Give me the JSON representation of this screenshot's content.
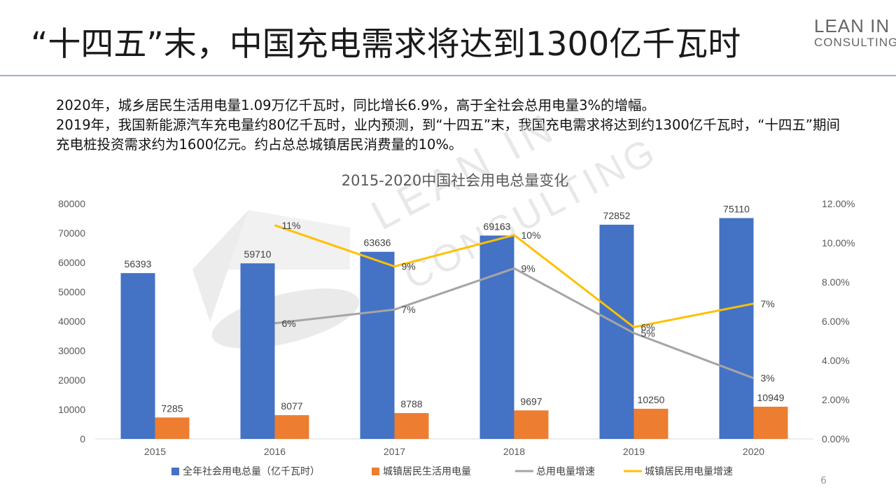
{
  "slide": {
    "title": "“十四五”末，中国充电需求将达到1300亿千瓦时",
    "logo_line1": "LEAN IN",
    "logo_line2": "CONSULTING",
    "watermark_line1": "LEAN IN",
    "watermark_line2": "CONSULTING",
    "summary": [
      "2020年，城乡居民生活用电量1.09万亿千瓦时，同比增长6.9%，高于全社会总用电量3%的增幅。",
      "2019年，我国新能源汽车充电量约80亿千瓦时，业内预测，到“十四五”末，我国充电需求将达到约1300亿千瓦时，“十四五”期间充电桩投资需求约为1600亿元。约占总总城镇居民消费量的10%。"
    ],
    "page_number": "6"
  },
  "chart_data": {
    "type": "bar",
    "title": "2015-2020中国社会用电总量变化",
    "categories": [
      "2015",
      "2016",
      "2017",
      "2018",
      "2019",
      "2020"
    ],
    "y_left": {
      "min": 0,
      "max": 80000,
      "ticks": [
        "0",
        "10000",
        "20000",
        "30000",
        "40000",
        "50000",
        "60000",
        "70000",
        "80000"
      ]
    },
    "y_right": {
      "min": 0,
      "max": 12,
      "ticks": [
        "0.00%",
        "2.00%",
        "4.00%",
        "6.00%",
        "8.00%",
        "10.00%",
        "12.00%"
      ]
    },
    "grid": false,
    "legend_position": "bottom",
    "bar_series": [
      {
        "name": "全年社会用电总量（亿千瓦时）",
        "color": "#4472c4",
        "values": [
          56393,
          59710,
          63636,
          69163,
          72852,
          75110
        ],
        "labels": [
          "56393",
          "59710",
          "63636",
          "69163",
          "72852",
          "75110"
        ]
      },
      {
        "name": "城镇居民生活用电量",
        "color": "#ed7d31",
        "values": [
          7285,
          8077,
          8788,
          9697,
          10250,
          10949
        ],
        "labels": [
          "7285",
          "8077",
          "8788",
          "9697",
          "10250",
          "10949"
        ]
      }
    ],
    "line_series": [
      {
        "name": "总用电量增速",
        "color": "#a5a5a5",
        "values": [
          null,
          5.9,
          6.6,
          8.7,
          5.4,
          3.1
        ],
        "labels": [
          null,
          "6%",
          "7%",
          "9%",
          "5%",
          "3%"
        ]
      },
      {
        "name": "城镇居民用电量增速",
        "color": "#ffc000",
        "values": [
          null,
          10.9,
          8.8,
          10.4,
          5.7,
          6.9
        ],
        "labels": [
          null,
          "11%",
          "9%",
          "10%",
          "6%",
          "7%"
        ]
      }
    ]
  }
}
